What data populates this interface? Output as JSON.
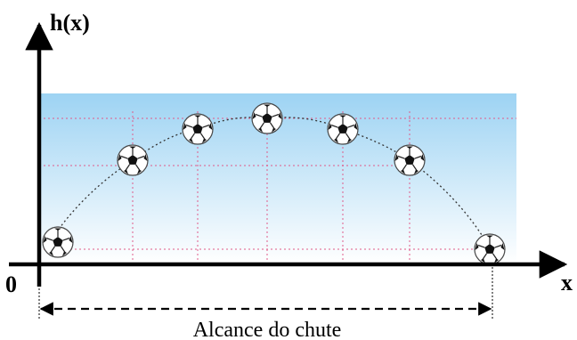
{
  "diagram": {
    "y_axis_label": "h(x)",
    "x_axis_label": "x",
    "origin_label": "0",
    "range_label": "Alcance do chute",
    "ball_icon": "soccer-ball-icon",
    "colors": {
      "sky_top": "#ffffff",
      "sky_bottom": "#9dd3f3",
      "grid": "#e05b8a",
      "trajectory": "#333333",
      "axis": "#000000"
    }
  }
}
